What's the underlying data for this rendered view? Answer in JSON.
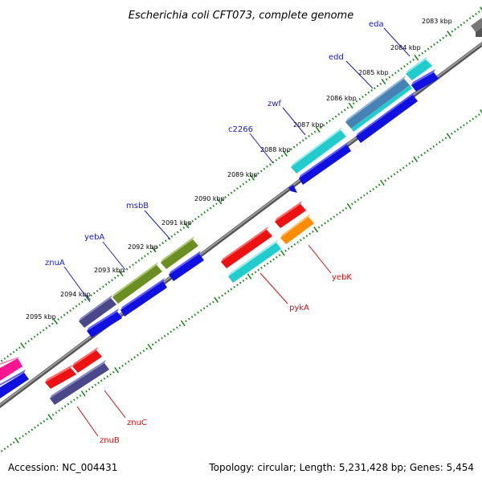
{
  "title": "Escherichia coli CFT073, complete genome",
  "footer": {
    "accession": "Accession: NC_004431",
    "summary": "Topology: circular; Length: 5,231,428 bp; Genes: 5,454"
  },
  "scale_labels": [
    "2083 kbp",
    "2084 kbp",
    "2085 kbp",
    "2086 kbp",
    "2087 kbp",
    "2088 kbp",
    "2089 kbp",
    "2090 kbp",
    "2091 kbp",
    "2092 kbp",
    "2093 kbp",
    "2094 kbp",
    "2095 kbp"
  ],
  "forward_genes": [
    "eda",
    "edd",
    "zwf",
    "c2266",
    "msbB",
    "yebA",
    "znuA"
  ],
  "reverse_genes": [
    "yebK",
    "pykA",
    "znuC",
    "znuB"
  ],
  "colors": {
    "backbone": "#8c8c8c",
    "tick": "#1e8a1e",
    "forward_label": "#1a1acc",
    "reverse_label": "#cc1111",
    "cds": "#1010e0",
    "red": "#ee1111",
    "cyan": "#22cccc",
    "olive": "#6b8e23",
    "slate": "#4a4888",
    "steel": "#4682b4",
    "orange": "#ff8c00",
    "pink": "#ff1493",
    "gray": "#777777"
  }
}
